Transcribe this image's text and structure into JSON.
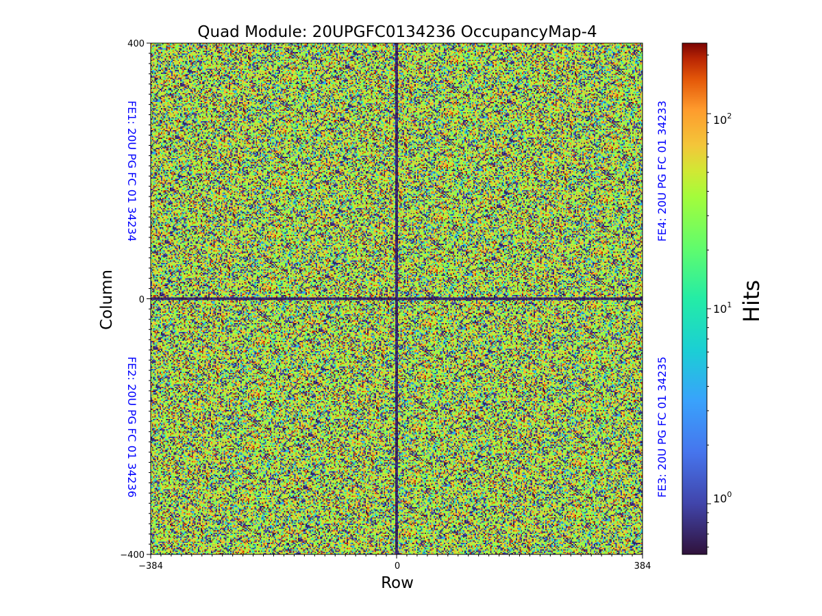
{
  "chart_data": {
    "type": "heatmap",
    "title": "Quad Module: 20UPGFC0134236 OccupancyMap-4",
    "xlabel": "Row",
    "ylabel": "Column",
    "xlim": [
      -384,
      384
    ],
    "ylim": [
      -400,
      400
    ],
    "x_ticks": [
      "−384",
      "0",
      "384"
    ],
    "y_ticks": [
      "400",
      "0",
      "−400"
    ],
    "colorbar": {
      "label": "Hits",
      "scale": "log",
      "colormap": "turbo",
      "range": [
        0.55,
        230
      ],
      "ticks": [
        {
          "value": 1,
          "mantissa": "10",
          "exponent": "0"
        },
        {
          "value": 10,
          "mantissa": "10",
          "exponent": "1"
        },
        {
          "value": 100,
          "mantissa": "10",
          "exponent": "2"
        }
      ]
    },
    "chips": [
      {
        "name": "FE1",
        "label": "FE1: 20U PG FC 01 34234",
        "quadrant": "top-left"
      },
      {
        "name": "FE2",
        "label": "FE2: 20U PG FC 01 34236",
        "quadrant": "bottom-left"
      },
      {
        "name": "FE3",
        "label": "FE3: 20U PG FC 01 34235",
        "quadrant": "bottom-right"
      },
      {
        "name": "FE4",
        "label": "FE4: 20U PG FC 01 34233",
        "quadrant": "top-right"
      }
    ],
    "chip_label_color": "#0000ff",
    "grid": false
  }
}
